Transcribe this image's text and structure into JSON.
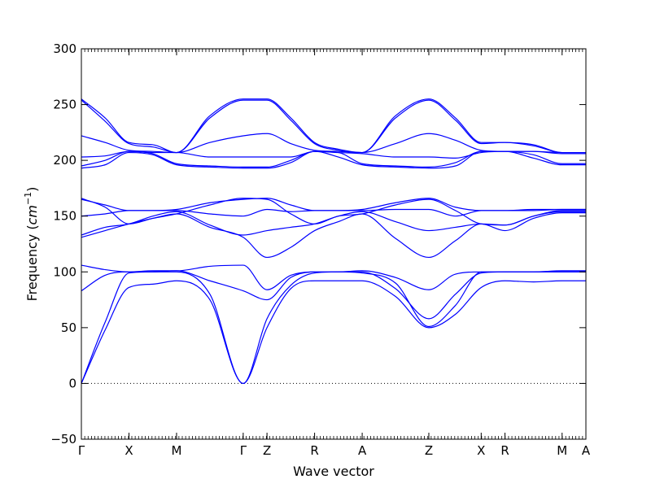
{
  "chart_data": {
    "type": "line",
    "title": "",
    "xlabel": "Wave vector",
    "ylabel": "Frequency (cm⁻¹)",
    "ylabel_parts": {
      "text": "Frequency (",
      "unit": "cm",
      "exponent": "−1",
      "close": ")"
    },
    "ylim": [
      -50,
      300
    ],
    "y_ticks": [
      -50,
      0,
      50,
      100,
      150,
      200,
      250,
      300
    ],
    "zero_line": true,
    "legend": "none",
    "line_color": "#0000ff",
    "x_ticks": [
      {
        "label": "Γ",
        "x": 0
      },
      {
        "label": "X",
        "x": 0.5
      },
      {
        "label": "M",
        "x": 1.0
      },
      {
        "label": "Γ",
        "x": 1.7
      },
      {
        "label": "Z",
        "x": 1.95
      },
      {
        "label": "R",
        "x": 2.45
      },
      {
        "label": "A",
        "x": 2.95
      },
      {
        "label": "Z",
        "x": 3.65
      },
      {
        "label": "X",
        "x": 4.2
      },
      {
        "label": "R",
        "x": 4.45
      },
      {
        "label": "M",
        "x": 5.05
      },
      {
        "label": "A",
        "x": 5.3
      }
    ],
    "series": [
      {
        "x": [
          0,
          0.25,
          0.5,
          0.75,
          1.0,
          1.35,
          1.7,
          1.95,
          2.2,
          2.45,
          2.7,
          2.95,
          3.3,
          3.65,
          3.93,
          4.2,
          4.45,
          4.75,
          5.05,
          5.3
        ],
        "y": [
          0,
          48,
          86,
          89,
          92,
          75,
          0,
          50,
          85,
          92,
          92,
          92,
          78,
          50,
          62,
          86,
          92,
          91,
          92,
          92
        ]
      },
      {
        "x": [
          0,
          0.25,
          0.5,
          0.75,
          1.0,
          1.35,
          1.7,
          1.95,
          2.2,
          2.45,
          2.7,
          2.95,
          3.3,
          3.65,
          3.93,
          4.2,
          4.45,
          4.75,
          5.05,
          5.3
        ],
        "y": [
          0,
          55,
          99,
          100,
          100,
          80,
          0,
          58,
          88,
          99,
          100,
          100,
          85,
          58,
          80,
          99,
          100,
          100,
          100,
          100
        ]
      },
      {
        "x": [
          0,
          0.25,
          0.5,
          0.75,
          1.0,
          1.35,
          1.7,
          1.95,
          2.2,
          2.45,
          2.7,
          2.95,
          3.3,
          3.65,
          3.93,
          4.2,
          4.45,
          4.75,
          5.05,
          5.3
        ],
        "y": [
          83,
          97,
          100,
          100,
          101,
          92,
          83,
          75,
          95,
          100,
          100,
          99,
          90,
          51,
          70,
          100,
          100,
          100,
          100,
          100
        ]
      },
      {
        "x": [
          0,
          0.25,
          0.5,
          0.75,
          1.0,
          1.35,
          1.7,
          1.95,
          2.2,
          2.45,
          2.7,
          2.95,
          3.3,
          3.65,
          3.93,
          4.2,
          4.45,
          4.75,
          5.05,
          5.3
        ],
        "y": [
          106,
          102,
          100,
          101,
          101,
          105,
          106,
          84,
          97,
          100,
          100,
          101,
          95,
          84,
          98,
          100,
          100,
          100,
          101,
          101
        ]
      },
      {
        "x": [
          0,
          0.25,
          0.5,
          0.75,
          1.0,
          1.35,
          1.7,
          1.95,
          2.2,
          2.45,
          2.7,
          2.95,
          3.3,
          3.65,
          3.93,
          4.2,
          4.45,
          4.75,
          5.05,
          5.3
        ],
        "y": [
          131,
          137,
          143,
          148,
          152,
          140,
          131,
          113,
          122,
          137,
          145,
          152,
          130,
          113,
          128,
          143,
          137,
          148,
          153,
          153
        ]
      },
      {
        "x": [
          0,
          0.25,
          0.5,
          0.75,
          1.0,
          1.35,
          1.7,
          1.95,
          2.2,
          2.45,
          2.7,
          2.95,
          3.3,
          3.65,
          3.93,
          4.2,
          4.45,
          4.75,
          5.05,
          5.3
        ],
        "y": [
          133,
          140,
          143,
          150,
          154,
          142,
          133,
          137,
          140,
          143,
          150,
          154,
          145,
          137,
          140,
          143,
          142,
          150,
          154,
          154
        ]
      },
      {
        "x": [
          0,
          0.25,
          0.5,
          0.75,
          1.0,
          1.35,
          1.7,
          1.95,
          2.2,
          2.45,
          2.7,
          2.95,
          3.3,
          3.65,
          3.93,
          4.2,
          4.45,
          4.75,
          5.05,
          5.3
        ],
        "y": [
          150,
          152,
          155,
          155,
          155,
          152,
          150,
          156,
          154,
          155,
          155,
          155,
          156,
          156,
          150,
          155,
          155,
          156,
          156,
          156
        ]
      },
      {
        "x": [
          0,
          0.25,
          0.5,
          0.75,
          1.0,
          1.35,
          1.7,
          1.95,
          2.2,
          2.45,
          2.7,
          2.95,
          3.3,
          3.65,
          3.93,
          4.2,
          4.45,
          4.75,
          5.05,
          5.3
        ],
        "y": [
          165,
          160,
          155,
          155,
          156,
          162,
          165,
          166,
          160,
          155,
          155,
          156,
          162,
          166,
          158,
          155,
          155,
          155,
          156,
          156
        ]
      },
      {
        "x": [
          0,
          0.25,
          0.5,
          0.75,
          1.0,
          1.35,
          1.7,
          1.95,
          2.2,
          2.45,
          2.7,
          2.95,
          3.3,
          3.65,
          3.93,
          4.2,
          4.45,
          4.75,
          5.05,
          5.3
        ],
        "y": [
          166,
          158,
          143,
          148,
          152,
          160,
          166,
          165,
          152,
          143,
          150,
          152,
          160,
          165,
          155,
          143,
          142,
          150,
          155,
          155
        ]
      },
      {
        "x": [
          0,
          0.25,
          0.5,
          0.75,
          1.0,
          1.35,
          1.7,
          1.95,
          2.2,
          2.45,
          2.7,
          2.95,
          3.3,
          3.65,
          3.93,
          4.2,
          4.45,
          4.75,
          5.05,
          5.3
        ],
        "y": [
          193,
          196,
          207,
          205,
          196,
          194,
          193,
          193,
          198,
          208,
          203,
          196,
          194,
          193,
          195,
          208,
          208,
          202,
          196,
          196
        ]
      },
      {
        "x": [
          0,
          0.25,
          0.5,
          0.75,
          1.0,
          1.35,
          1.7,
          1.95,
          2.2,
          2.45,
          2.7,
          2.95,
          3.3,
          3.65,
          3.93,
          4.2,
          4.45,
          4.75,
          5.05,
          5.3
        ],
        "y": [
          195,
          200,
          208,
          206,
          197,
          195,
          194,
          194,
          200,
          208,
          207,
          197,
          195,
          194,
          198,
          208,
          208,
          205,
          197,
          197
        ]
      },
      {
        "x": [
          0,
          0.25,
          0.5,
          0.75,
          1.0,
          1.35,
          1.7,
          1.95,
          2.2,
          2.45,
          2.7,
          2.95,
          3.3,
          3.65,
          3.93,
          4.2,
          4.45,
          4.75,
          5.05,
          5.3
        ],
        "y": [
          203,
          204,
          208,
          207,
          207,
          203,
          203,
          203,
          203,
          208,
          207,
          206,
          203,
          203,
          202,
          207,
          208,
          208,
          206,
          206
        ]
      },
      {
        "x": [
          0,
          0.25,
          0.5,
          0.75,
          1.0,
          1.35,
          1.7,
          1.95,
          2.2,
          2.45,
          2.7,
          2.95,
          3.3,
          3.65,
          3.93,
          4.2,
          4.45,
          4.75,
          5.05,
          5.3
        ],
        "y": [
          222,
          216,
          209,
          208,
          207,
          216,
          222,
          224,
          215,
          209,
          208,
          207,
          215,
          224,
          218,
          209,
          208,
          208,
          207,
          207
        ]
      },
      {
        "x": [
          0,
          0.25,
          0.5,
          0.75,
          1.0,
          1.35,
          1.7,
          1.95,
          2.2,
          2.45,
          2.7,
          2.95,
          3.3,
          3.65,
          3.93,
          4.2,
          4.45,
          4.75,
          5.05,
          5.3
        ],
        "y": [
          255,
          238,
          216,
          214,
          207,
          240,
          255,
          255,
          238,
          216,
          210,
          207,
          240,
          255,
          238,
          216,
          216,
          214,
          207,
          207
        ]
      },
      {
        "x": [
          0,
          0.25,
          0.5,
          0.75,
          1.0,
          1.35,
          1.7,
          1.95,
          2.2,
          2.45,
          2.7,
          2.95,
          3.3,
          3.65,
          3.93,
          4.2,
          4.45,
          4.75,
          5.05,
          5.3
        ],
        "y": [
          254,
          235,
          215,
          212,
          207,
          238,
          254,
          254,
          236,
          215,
          209,
          207,
          238,
          254,
          236,
          215,
          216,
          213,
          207,
          207
        ]
      }
    ]
  }
}
